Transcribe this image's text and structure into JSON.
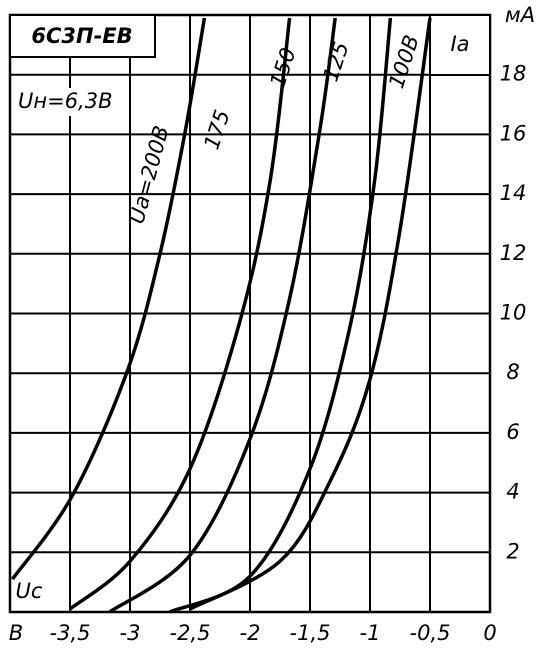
{
  "chart_data": {
    "type": "line",
    "title": "6С3П-ЕВ",
    "subtitle": "Uн=6,3В",
    "x_label": "Uc",
    "x_unit": "В",
    "y_label": "Ia",
    "y_unit": "мА",
    "color": "#000000",
    "grid": true,
    "xlim": [
      -4,
      0
    ],
    "ylim": [
      0,
      20
    ],
    "xticks": [
      {
        "value": -3.5,
        "label": "-3,5"
      },
      -3,
      {
        "value": -2.5,
        "label": "-2,5"
      },
      -2,
      {
        "value": -1.5,
        "label": "-1,5"
      },
      -1,
      {
        "value": -0.5,
        "label": "-0,5"
      },
      0
    ],
    "yticks": [
      2,
      4,
      6,
      8,
      10,
      12,
      14,
      16,
      18
    ],
    "series": [
      {
        "name": "Ua=200В",
        "x": [
          -3.98,
          -3.48,
          -3.02,
          -2.75,
          -2.54,
          -2.38
        ],
        "values": [
          1.1,
          3.9,
          8.1,
          12,
          16.1,
          19.9
        ]
      },
      {
        "name": "175",
        "x": [
          -3.5,
          -3,
          -2.5,
          -2.08,
          -1.83,
          -1.67
        ],
        "values": [
          0.1,
          1.7,
          4.8,
          9.8,
          14.5,
          19.9
        ]
      },
      {
        "name": "150",
        "x": [
          -3.17,
          -2.5,
          -2,
          -1.67,
          -1.42,
          -1.29
        ],
        "values": [
          0,
          1.9,
          5.8,
          10.5,
          16.1,
          19.9
        ]
      },
      {
        "name": "125",
        "x": [
          -2.67,
          -2,
          -1.5,
          -1.17,
          -0.96,
          -0.83
        ],
        "values": [
          0,
          1.2,
          4.8,
          9.5,
          14.5,
          19.9
        ]
      },
      {
        "name": "100В",
        "x": [
          -2.5,
          -1.75,
          -1.33,
          -1,
          -0.75,
          -0.5
        ],
        "values": [
          0.1,
          1.7,
          4.4,
          7.8,
          12.8,
          19.9
        ]
      }
    ]
  }
}
